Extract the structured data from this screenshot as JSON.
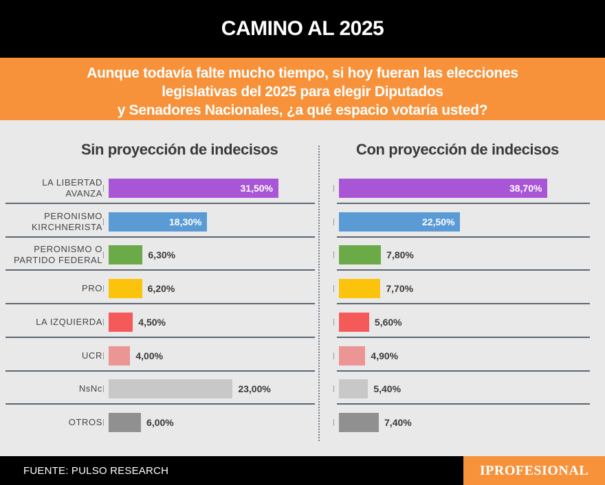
{
  "header": {
    "title": "CAMINO AL 2025"
  },
  "subtitle": {
    "lines": [
      "Aunque todavía falte mucho tiempo, si hoy fueran las elecciones",
      "legislativas del 2025 para elegir Diputados",
      "y Senadores Nacionales, ¿a qué espacio votaría usted?"
    ]
  },
  "footer": {
    "source": "FUENTE: PULSO RESEARCH",
    "brand": "IPROFESIONAL"
  },
  "chart_data": {
    "type": "bar",
    "orientation": "horizontal",
    "categories": [
      "LA LIBERTAD AVANZA",
      "PERONISMO KIRCHNERISTA",
      "PERONISMO O PARTIDO FEDERAL",
      "PRO",
      "LA IZQUIERDA",
      "UCR",
      "NsNc",
      "OTROS"
    ],
    "category_lines": [
      [
        "LA LIBERTAD",
        "AVANZA"
      ],
      [
        "PERONISMO",
        "KIRCHNERISTA"
      ],
      [
        "PERONISMO O",
        "PARTIDO FEDERAL"
      ],
      [
        "PRO"
      ],
      [
        "LA IZQUIERDA"
      ],
      [
        "UCR"
      ],
      [
        "NsNc"
      ],
      [
        "OTROS"
      ]
    ],
    "colors": [
      "#a855d6",
      "#5b9bd5",
      "#6aab47",
      "#fcc30d",
      "#f45a5a",
      "#eb9594",
      "#c8c8c8",
      "#909090"
    ],
    "series": [
      {
        "name": "Sin proyección de indecisos",
        "values": [
          31.5,
          18.3,
          6.3,
          6.2,
          4.5,
          4.0,
          23.0,
          6.0
        ],
        "labels": [
          "31,50%",
          "18,30%",
          "6,30%",
          "6,20%",
          "4,50%",
          "4,00%",
          "23,00%",
          "6,00%"
        ]
      },
      {
        "name": "Con proyección de indecisos",
        "values": [
          38.7,
          22.5,
          7.8,
          7.7,
          5.6,
          4.9,
          5.4,
          7.4
        ],
        "labels": [
          "38,70%",
          "22,50%",
          "7,80%",
          "7,70%",
          "5,60%",
          "4,90%",
          "5,40%",
          "7,40%"
        ]
      }
    ],
    "inside_label_categories": [
      "LA LIBERTAD AVANZA",
      "PERONISMO KIRCHNERISTA"
    ],
    "xlim": [
      0,
      40
    ],
    "title": "",
    "xlabel": "",
    "ylabel": ""
  }
}
